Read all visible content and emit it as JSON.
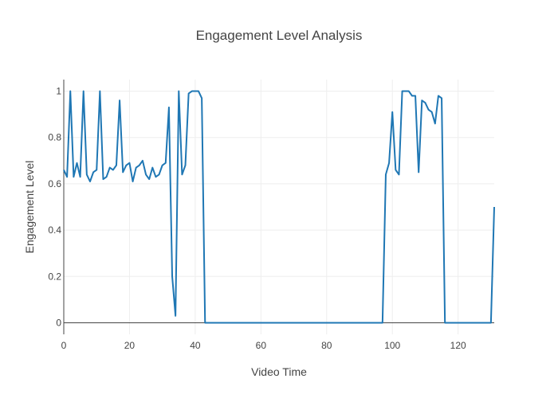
{
  "chart_data": {
    "type": "line",
    "title": "Engagement Level Analysis",
    "xlabel": "Video Time",
    "ylabel": "Engagement Level",
    "xlim": [
      0,
      131
    ],
    "ylim": [
      -0.05,
      1.05
    ],
    "x_ticks": [
      0,
      20,
      40,
      60,
      80,
      100,
      120
    ],
    "y_ticks": [
      0,
      0.2,
      0.4,
      0.6,
      0.8,
      1
    ],
    "grid": true,
    "legend": "none",
    "series": [
      {
        "color": "#1f77b4",
        "x": [
          0,
          1,
          2,
          3,
          4,
          5,
          6,
          7,
          8,
          9,
          10,
          11,
          12,
          13,
          14,
          15,
          16,
          17,
          18,
          19,
          20,
          21,
          22,
          23,
          24,
          25,
          26,
          27,
          28,
          29,
          30,
          31,
          32,
          33,
          34,
          35,
          36,
          37,
          38,
          39,
          40,
          41,
          42,
          43,
          50,
          60,
          70,
          80,
          90,
          97,
          98,
          99,
          100,
          101,
          102,
          103,
          104,
          105,
          106,
          107,
          108,
          109,
          110,
          111,
          112,
          113,
          114,
          115,
          116,
          120,
          125,
          130,
          131
        ],
        "values": [
          0.66,
          0.63,
          1.0,
          0.63,
          0.69,
          0.63,
          1.0,
          0.64,
          0.61,
          0.65,
          0.66,
          1.0,
          0.62,
          0.63,
          0.67,
          0.66,
          0.68,
          0.96,
          0.65,
          0.68,
          0.69,
          0.61,
          0.67,
          0.68,
          0.7,
          0.64,
          0.62,
          0.67,
          0.63,
          0.64,
          0.68,
          0.69,
          0.93,
          0.2,
          0.03,
          1.0,
          0.64,
          0.68,
          0.99,
          1.0,
          1.0,
          1.0,
          0.97,
          0.0,
          0.0,
          0.0,
          0.0,
          0.0,
          0.0,
          0.0,
          0.64,
          0.69,
          0.91,
          0.66,
          0.64,
          1.0,
          1.0,
          1.0,
          0.98,
          0.98,
          0.65,
          0.96,
          0.95,
          0.92,
          0.91,
          0.86,
          0.98,
          0.97,
          0.0,
          0.0,
          0.0,
          0.0,
          0.5
        ]
      }
    ]
  }
}
